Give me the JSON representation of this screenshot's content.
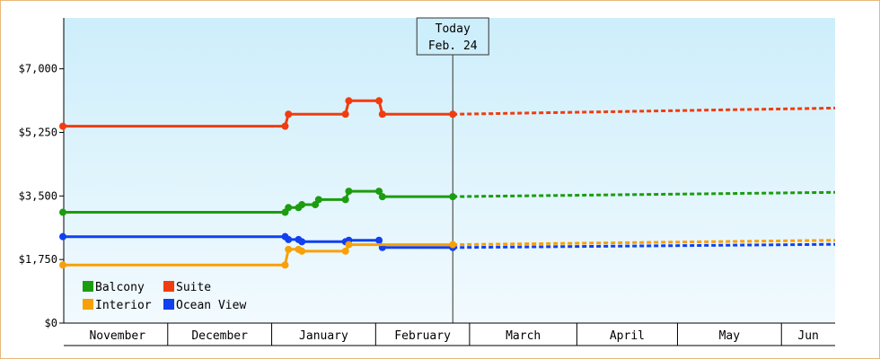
{
  "chart_data": {
    "type": "line",
    "y_axis": {
      "ylim": [
        0,
        8400
      ],
      "ticks": [
        {
          "value": 0,
          "label": "$0"
        },
        {
          "value": 1750,
          "label": "$1,750"
        },
        {
          "value": 3500,
          "label": "$3,500"
        },
        {
          "value": 5250,
          "label": "$5,250"
        },
        {
          "value": 7000,
          "label": "$7,000"
        }
      ]
    },
    "x_axis": {
      "xlim": [
        "2019-10-31",
        "2020-06-17"
      ],
      "months": [
        {
          "label": "November",
          "start": "2019-11-01",
          "end": "2019-12-01"
        },
        {
          "label": "December",
          "start": "2019-12-01",
          "end": "2020-01-01"
        },
        {
          "label": "January",
          "start": "2020-01-01",
          "end": "2020-02-01"
        },
        {
          "label": "February",
          "start": "2020-02-01",
          "end": "2020-02-29"
        },
        {
          "label": "March",
          "start": "2020-02-29",
          "end": "2020-04-01"
        },
        {
          "label": "April",
          "start": "2020-04-01",
          "end": "2020-05-01"
        },
        {
          "label": "May",
          "start": "2020-05-01",
          "end": "2020-06-01"
        },
        {
          "label": "Jun",
          "start": "2020-06-01",
          "end": "2020-06-17"
        }
      ]
    },
    "today": {
      "label": "Today",
      "date_label": "Feb. 24",
      "date": "2020-02-24"
    },
    "forecast_end": "2020-06-17",
    "series": [
      {
        "name": "Suite",
        "color": "#f03c10",
        "history": [
          {
            "x": "2019-10-31",
            "y": 5420
          },
          {
            "x": "2020-01-05",
            "y": 5420
          },
          {
            "x": "2020-01-06",
            "y": 5750
          },
          {
            "x": "2020-01-23",
            "y": 5750
          },
          {
            "x": "2020-01-24",
            "y": 6120
          },
          {
            "x": "2020-02-02",
            "y": 6120
          },
          {
            "x": "2020-02-03",
            "y": 5750
          },
          {
            "x": "2020-02-24",
            "y": 5750
          }
        ],
        "forecast": [
          {
            "x": "2020-02-24",
            "y": 5750
          },
          {
            "x": "2020-06-17",
            "y": 5920
          }
        ]
      },
      {
        "name": "Balcony",
        "color": "#1c9c10",
        "history": [
          {
            "x": "2019-10-31",
            "y": 3050
          },
          {
            "x": "2020-01-05",
            "y": 3050
          },
          {
            "x": "2020-01-06",
            "y": 3180
          },
          {
            "x": "2020-01-09",
            "y": 3180
          },
          {
            "x": "2020-01-10",
            "y": 3260
          },
          {
            "x": "2020-01-14",
            "y": 3260
          },
          {
            "x": "2020-01-15",
            "y": 3400
          },
          {
            "x": "2020-01-23",
            "y": 3400
          },
          {
            "x": "2020-01-24",
            "y": 3630
          },
          {
            "x": "2020-02-02",
            "y": 3630
          },
          {
            "x": "2020-02-03",
            "y": 3480
          },
          {
            "x": "2020-02-24",
            "y": 3480
          }
        ],
        "forecast": [
          {
            "x": "2020-02-24",
            "y": 3480
          },
          {
            "x": "2020-06-17",
            "y": 3600
          }
        ]
      },
      {
        "name": "Ocean View",
        "color": "#1040f0",
        "history": [
          {
            "x": "2019-10-31",
            "y": 2380
          },
          {
            "x": "2020-01-05",
            "y": 2380
          },
          {
            "x": "2020-01-06",
            "y": 2300
          },
          {
            "x": "2020-01-09",
            "y": 2300
          },
          {
            "x": "2020-01-10",
            "y": 2240
          },
          {
            "x": "2020-01-23",
            "y": 2240
          },
          {
            "x": "2020-01-24",
            "y": 2280
          },
          {
            "x": "2020-02-02",
            "y": 2280
          },
          {
            "x": "2020-02-03",
            "y": 2080
          },
          {
            "x": "2020-02-24",
            "y": 2080
          }
        ],
        "forecast": [
          {
            "x": "2020-02-24",
            "y": 2080
          },
          {
            "x": "2020-06-17",
            "y": 2170
          }
        ]
      },
      {
        "name": "Interior",
        "color": "#f8a008",
        "history": [
          {
            "x": "2019-10-31",
            "y": 1600
          },
          {
            "x": "2020-01-05",
            "y": 1600
          },
          {
            "x": "2020-01-06",
            "y": 2030
          },
          {
            "x": "2020-01-09",
            "y": 2030
          },
          {
            "x": "2020-01-10",
            "y": 1980
          },
          {
            "x": "2020-01-23",
            "y": 1980
          },
          {
            "x": "2020-01-24",
            "y": 2160
          },
          {
            "x": "2020-02-24",
            "y": 2160
          }
        ],
        "forecast": [
          {
            "x": "2020-02-24",
            "y": 2160
          },
          {
            "x": "2020-06-17",
            "y": 2280
          }
        ]
      }
    ],
    "legend": {
      "placement": "bottom-left",
      "order": [
        "Balcony",
        "Suite",
        "Interior",
        "Ocean View"
      ]
    },
    "colors": {
      "background_top": "#cdeefb",
      "background_bottom": "#f2fafe",
      "axis": "#000000",
      "frame_border": "#e8b878"
    }
  }
}
